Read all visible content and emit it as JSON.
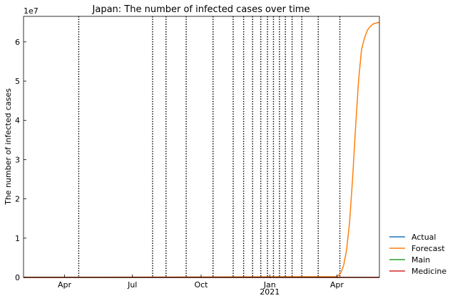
{
  "chart_data": {
    "type": "line",
    "title": "Japan: The number of infected cases over time",
    "ylabel": "The number of infected cases",
    "xlabel": "",
    "y_offset_label": "1e7",
    "xlim": [
      "2020-02-06",
      "2021-05-28"
    ],
    "ylim": [
      0,
      6.65
    ],
    "y_multiplier": 10000000,
    "y_ticks": [
      0,
      1,
      2,
      3,
      4,
      5,
      6
    ],
    "x_ticks": [
      {
        "date": "2020-04-01",
        "label": "Apr",
        "sub": ""
      },
      {
        "date": "2020-07-01",
        "label": "Jul",
        "sub": ""
      },
      {
        "date": "2020-10-01",
        "label": "Oct",
        "sub": ""
      },
      {
        "date": "2021-01-01",
        "label": "Jan",
        "sub": "2021"
      },
      {
        "date": "2021-04-01",
        "label": "Apr",
        "sub": ""
      }
    ],
    "change_dates": [
      "2020-04-20",
      "2020-07-28",
      "2020-08-15",
      "2020-09-11",
      "2020-10-17",
      "2020-11-13",
      "2020-11-27",
      "2020-12-09",
      "2020-12-20",
      "2020-12-29",
      "2021-01-06",
      "2021-01-14",
      "2021-01-22",
      "2021-01-31",
      "2021-02-13",
      "2021-03-07",
      "2021-04-05"
    ],
    "legend_position": "outside-right",
    "grid": false,
    "series": [
      {
        "name": "Actual",
        "color": "#1f77b4",
        "points": [
          [
            "2020-02-06",
            0.0
          ],
          [
            "2021-04-05",
            0.0
          ]
        ]
      },
      {
        "name": "Forecast",
        "color": "#ff7f0e",
        "points": [
          [
            "2020-02-06",
            0.0
          ],
          [
            "2021-04-01",
            0.02
          ],
          [
            "2021-04-06",
            0.1
          ],
          [
            "2021-04-10",
            0.3
          ],
          [
            "2021-04-14",
            0.7
          ],
          [
            "2021-04-18",
            1.4
          ],
          [
            "2021-04-22",
            2.5
          ],
          [
            "2021-04-26",
            3.8
          ],
          [
            "2021-04-30",
            5.0
          ],
          [
            "2021-05-04",
            5.8
          ],
          [
            "2021-05-08",
            6.1
          ],
          [
            "2021-05-12",
            6.3
          ],
          [
            "2021-05-16",
            6.4
          ],
          [
            "2021-05-20",
            6.46
          ],
          [
            "2021-05-28",
            6.5
          ]
        ]
      },
      {
        "name": "Main",
        "color": "#2ca02c",
        "points": [
          [
            "2020-02-06",
            0.0
          ],
          [
            "2021-05-28",
            0.0
          ]
        ]
      },
      {
        "name": "Medicine",
        "color": "#d62728",
        "points": [
          [
            "2020-02-06",
            0.0
          ],
          [
            "2021-05-28",
            0.0
          ]
        ]
      }
    ]
  }
}
